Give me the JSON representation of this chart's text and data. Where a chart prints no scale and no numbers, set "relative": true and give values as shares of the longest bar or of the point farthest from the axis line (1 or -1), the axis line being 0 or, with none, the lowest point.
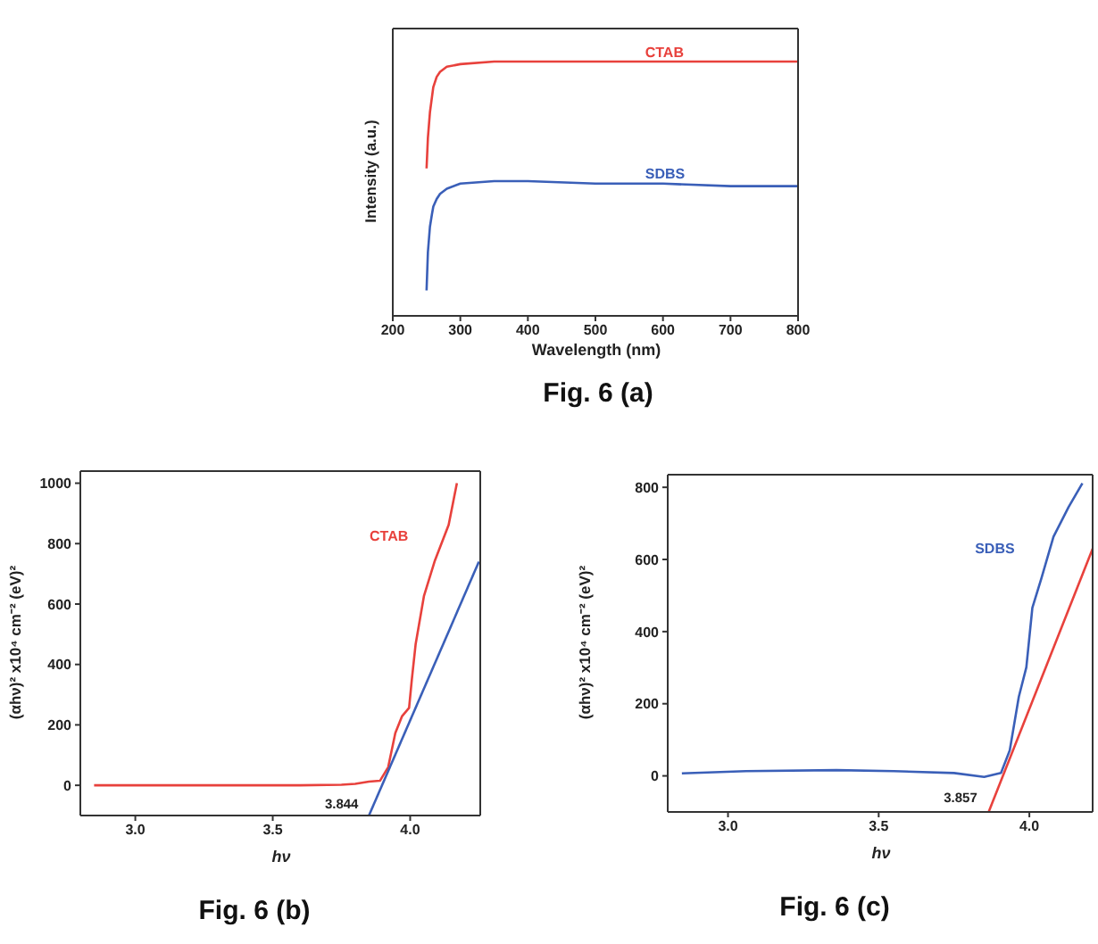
{
  "chart_data": [
    {
      "type": "line",
      "title": "Fig. 6 (a)",
      "xlabel": "Wavelength (nm)",
      "ylabel": "Intensity (a.u.)",
      "relative": true,
      "xlim": [
        200,
        800
      ],
      "xticks": [
        200,
        300,
        400,
        500,
        600,
        700,
        800
      ],
      "grid": false,
      "legend": false,
      "series": [
        {
          "name": "CTAB",
          "color": "#e8413c",
          "x": [
            250,
            252,
            255,
            258,
            260,
            265,
            270,
            280,
            300,
            350,
            400,
            500,
            600,
            700,
            800
          ],
          "values": [
            0.58,
            0.7,
            0.8,
            0.86,
            0.9,
            0.94,
            0.96,
            0.98,
            0.99,
            1,
            1,
            1,
            1,
            1,
            1
          ]
        },
        {
          "name": "SDBS",
          "color": "#3a5fb8",
          "x": [
            250,
            252,
            255,
            258,
            260,
            265,
            270,
            280,
            300,
            350,
            400,
            500,
            600,
            700,
            800
          ],
          "values": [
            0.1,
            0.25,
            0.35,
            0.4,
            0.43,
            0.46,
            0.48,
            0.5,
            0.52,
            0.53,
            0.53,
            0.52,
            0.52,
            0.51,
            0.51
          ]
        }
      ]
    },
    {
      "type": "line",
      "title": "Fig. 6 (b)",
      "xlabel": "hν",
      "ylabel": "(αhν)² x10⁴ cm⁻² (eV)²",
      "xlim": [
        2.8,
        4.255
      ],
      "xticks": [
        {
          "value": 3,
          "label": "3.0"
        },
        {
          "value": 3.5,
          "label": "3.5"
        },
        {
          "value": 4,
          "label": "4.0"
        }
      ],
      "ylim": [
        -100,
        1040
      ],
      "yticks": [
        0,
        200,
        400,
        600,
        800,
        1000
      ],
      "grid": false,
      "legend": false,
      "annotations": [
        {
          "text": "3.844",
          "x": 3.844,
          "y": -60
        }
      ],
      "series": [
        {
          "name": "CTAB",
          "color": "#e8413c",
          "x": [
            2.85,
            3.2,
            3.6,
            3.75,
            3.8,
            3.85,
            3.89,
            3.92,
            3.946,
            3.97,
            3.996,
            4.006,
            4.02,
            4.05,
            4.09,
            4.14,
            4.17
          ],
          "values": [
            0,
            0,
            0,
            2,
            5,
            12,
            15,
            60,
            173,
            228,
            256,
            350,
            468,
            626,
            744,
            862,
            1000
          ]
        },
        {
          "color": "#3a5fb8",
          "x": [
            3.85,
            4.25
          ],
          "values": [
            -100,
            740
          ]
        }
      ]
    },
    {
      "type": "line",
      "title": "Fig. 6 (c)",
      "xlabel": "hν",
      "ylabel": "(αhν)² x10⁴ cm⁻² (eV)²",
      "xlim": [
        2.8,
        4.21
      ],
      "xticks": [
        {
          "value": 3,
          "label": "3.0"
        },
        {
          "value": 3.5,
          "label": "3.5"
        },
        {
          "value": 4,
          "label": "4.0"
        }
      ],
      "ylim": [
        -100,
        835
      ],
      "yticks": [
        0,
        200,
        400,
        600,
        800
      ],
      "grid": false,
      "legend": false,
      "annotations": [
        {
          "text": "3.857",
          "x": 3.857,
          "y": -60
        }
      ],
      "series": [
        {
          "name": "SDBS",
          "color": "#3a5fb8",
          "x": [
            2.847,
            3.06,
            3.36,
            3.55,
            3.75,
            3.85,
            3.906,
            3.935,
            3.965,
            3.99,
            4.01,
            4.04,
            4.08,
            4.13,
            4.176
          ],
          "values": [
            7,
            13,
            16,
            13,
            8,
            -3,
            8,
            71,
            219,
            301,
            466,
            548,
            663,
            745,
            811
          ]
        },
        {
          "color": "#e8413c",
          "x": [
            3.865,
            4.21
          ],
          "values": [
            -100,
            630
          ]
        }
      ]
    }
  ]
}
